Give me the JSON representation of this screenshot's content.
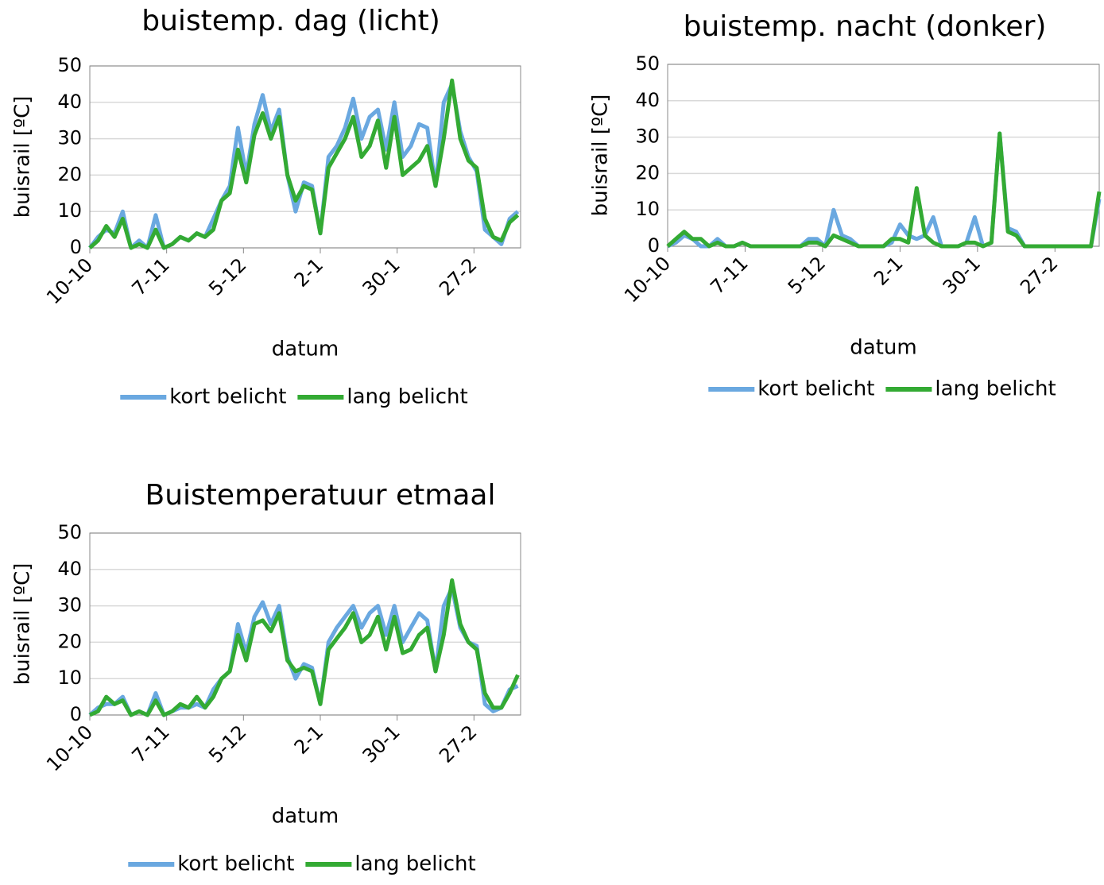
{
  "chart_data": [
    {
      "type": "line",
      "title": "buistemp. dag (licht)",
      "x_label": "datum",
      "y_label": "buisrail [ºC]",
      "x": [
        0,
        3,
        6,
        9,
        12,
        15,
        18,
        21,
        24,
        27,
        30,
        33,
        36,
        39,
        42,
        45,
        48,
        51,
        54,
        57,
        60,
        63,
        66,
        69,
        72,
        75,
        78,
        81,
        84,
        87,
        90,
        93,
        96,
        99,
        102,
        105,
        108,
        111,
        114,
        117,
        120,
        123,
        126,
        129,
        132,
        135,
        138,
        141,
        144,
        147,
        150,
        153,
        156
      ],
      "xlim": [
        0,
        157
      ],
      "xticks": [
        {
          "value": 0,
          "label": "10-10"
        },
        {
          "value": 28,
          "label": "7-11"
        },
        {
          "value": 56,
          "label": "5-12"
        },
        {
          "value": 84,
          "label": "2-1"
        },
        {
          "value": 112,
          "label": "30-1"
        },
        {
          "value": 140,
          "label": "27-2"
        }
      ],
      "ylim": [
        0,
        50
      ],
      "yticks": [
        0,
        10,
        20,
        30,
        40,
        50
      ],
      "grid": true,
      "series": [
        {
          "name": "kort belicht",
          "color": "#6aa8e0",
          "values": [
            0,
            3,
            5,
            4,
            10,
            0,
            2,
            0,
            9,
            0,
            1,
            3,
            2,
            4,
            3,
            8,
            13,
            17,
            33,
            20,
            34,
            42,
            32,
            38,
            20,
            10,
            18,
            17,
            4,
            25,
            28,
            33,
            41,
            30,
            36,
            38,
            27,
            40,
            25,
            28,
            34,
            33,
            17,
            40,
            45,
            32,
            25,
            21,
            5,
            3,
            1,
            8,
            10
          ]
        },
        {
          "name": "lang belicht",
          "color": "#33aa33",
          "values": [
            0,
            2,
            6,
            3,
            8,
            0,
            1,
            0,
            5,
            0,
            1,
            3,
            2,
            4,
            3,
            5,
            13,
            15,
            27,
            18,
            31,
            37,
            30,
            36,
            20,
            13,
            17,
            16,
            4,
            22,
            26,
            30,
            36,
            25,
            28,
            35,
            22,
            36,
            20,
            22,
            24,
            28,
            17,
            30,
            46,
            30,
            24,
            22,
            8,
            3,
            2,
            7,
            9
          ]
        }
      ]
    },
    {
      "type": "line",
      "title": "buistemp. nacht (donker)",
      "x_label": "datum",
      "y_label": "buisrail [ºC]",
      "x": [
        0,
        3,
        6,
        9,
        12,
        15,
        18,
        21,
        24,
        27,
        30,
        33,
        36,
        39,
        42,
        45,
        48,
        51,
        54,
        57,
        60,
        63,
        66,
        69,
        72,
        75,
        78,
        81,
        84,
        87,
        90,
        93,
        96,
        99,
        102,
        105,
        108,
        111,
        114,
        117,
        120,
        123,
        126,
        129,
        132,
        135,
        138,
        141,
        144,
        147,
        150,
        153,
        156
      ],
      "xlim": [
        0,
        156
      ],
      "xticks": [
        {
          "value": 0,
          "label": "10-10"
        },
        {
          "value": 28,
          "label": "7-11"
        },
        {
          "value": 56,
          "label": "5-12"
        },
        {
          "value": 84,
          "label": "2-1"
        },
        {
          "value": 112,
          "label": "30-1"
        },
        {
          "value": 140,
          "label": "27-2"
        }
      ],
      "ylim": [
        0,
        50
      ],
      "yticks": [
        0,
        10,
        20,
        30,
        40,
        50
      ],
      "grid": true,
      "series": [
        {
          "name": "kort belicht",
          "color": "#6aa8e0",
          "values": [
            0,
            1,
            3,
            2,
            0,
            0,
            2,
            0,
            0,
            1,
            0,
            0,
            0,
            0,
            0,
            0,
            0,
            2,
            2,
            0,
            10,
            3,
            2,
            0,
            0,
            0,
            0,
            1,
            6,
            3,
            2,
            3,
            8,
            0,
            0,
            0,
            1,
            8,
            0,
            1,
            31,
            5,
            4,
            0,
            0,
            0,
            0,
            0,
            0,
            0,
            0,
            0,
            13
          ]
        },
        {
          "name": "lang belicht",
          "color": "#33aa33",
          "values": [
            0,
            2,
            4,
            2,
            2,
            0,
            1,
            0,
            0,
            1,
            0,
            0,
            0,
            0,
            0,
            0,
            0,
            1,
            1,
            0,
            3,
            2,
            1,
            0,
            0,
            0,
            0,
            2,
            2,
            1,
            16,
            3,
            1,
            0,
            0,
            0,
            1,
            1,
            0,
            1,
            31,
            4,
            3,
            0,
            0,
            0,
            0,
            0,
            0,
            0,
            0,
            0,
            15
          ]
        }
      ]
    },
    {
      "type": "line",
      "title": "Buistemperatuur etmaal",
      "x_label": "datum",
      "y_label": "buisrail [ºC]",
      "x": [
        0,
        3,
        6,
        9,
        12,
        15,
        18,
        21,
        24,
        27,
        30,
        33,
        36,
        39,
        42,
        45,
        48,
        51,
        54,
        57,
        60,
        63,
        66,
        69,
        72,
        75,
        78,
        81,
        84,
        87,
        90,
        93,
        96,
        99,
        102,
        105,
        108,
        111,
        114,
        117,
        120,
        123,
        126,
        129,
        132,
        135,
        138,
        141,
        144,
        147,
        150,
        153,
        156
      ],
      "xlim": [
        0,
        157
      ],
      "xticks": [
        {
          "value": 0,
          "label": "10-10"
        },
        {
          "value": 28,
          "label": "7-11"
        },
        {
          "value": 56,
          "label": "5-12"
        },
        {
          "value": 84,
          "label": "2-1"
        },
        {
          "value": 112,
          "label": "30-1"
        },
        {
          "value": 140,
          "label": "27-2"
        }
      ],
      "ylim": [
        0,
        50
      ],
      "yticks": [
        0,
        10,
        20,
        30,
        40,
        50
      ],
      "grid": true,
      "series": [
        {
          "name": "kort belicht",
          "color": "#6aa8e0",
          "values": [
            0,
            2,
            3,
            3,
            5,
            0,
            1,
            0,
            6,
            0,
            1,
            2,
            2,
            3,
            2,
            7,
            10,
            12,
            25,
            17,
            27,
            31,
            25,
            30,
            16,
            10,
            14,
            13,
            3,
            20,
            24,
            27,
            30,
            24,
            28,
            30,
            22,
            30,
            20,
            24,
            28,
            26,
            12,
            30,
            35,
            24,
            20,
            19,
            3,
            1,
            2,
            7,
            8
          ]
        },
        {
          "name": "lang belicht",
          "color": "#33aa33",
          "values": [
            0,
            1,
            5,
            3,
            4,
            0,
            1,
            0,
            4,
            0,
            1,
            3,
            2,
            5,
            2,
            5,
            10,
            12,
            22,
            15,
            25,
            26,
            23,
            28,
            15,
            12,
            13,
            12,
            3,
            18,
            21,
            24,
            28,
            20,
            22,
            27,
            18,
            27,
            17,
            18,
            22,
            24,
            12,
            22,
            37,
            25,
            20,
            18,
            6,
            2,
            2,
            6,
            11
          ]
        }
      ]
    }
  ]
}
